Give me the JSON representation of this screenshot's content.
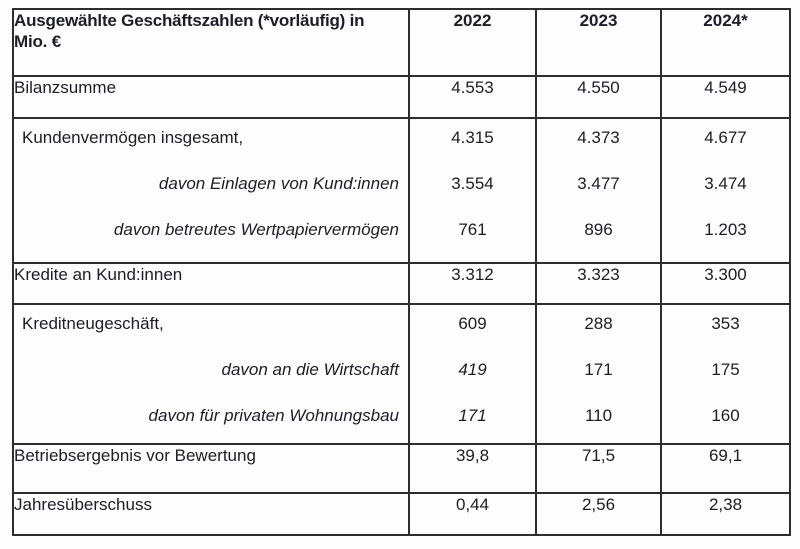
{
  "table": {
    "header": {
      "title_line1": "Ausgewählte Geschäftszahlen (*vorläufig) in",
      "title_line2": "Mio. €",
      "years": [
        "2022",
        "2023",
        "2024*"
      ]
    },
    "rows": {
      "bilanzsumme": {
        "label": "Bilanzsumme",
        "v2022": "4.553",
        "v2023": "4.550",
        "v2024": "4.549"
      },
      "kundenvermoegen": {
        "label": "Kundenvermögen insgesamt,",
        "v2022": "4.315",
        "v2023": "4.373",
        "v2024": "4.677"
      },
      "davon_einlagen": {
        "label": "davon Einlagen von Kund:innen",
        "v2022": "3.554",
        "v2023": "3.477",
        "v2024": "3.474"
      },
      "davon_wertpapier": {
        "label": "davon betreutes Wertpapiervermögen",
        "v2022": "761",
        "v2023": "896",
        "v2024": "1.203"
      },
      "kredite": {
        "label": "Kredite an Kund:innen",
        "v2022": "3.312",
        "v2023": "3.323",
        "v2024": "3.300"
      },
      "kreditneugeschaeft": {
        "label": "Kreditneugeschäft,",
        "v2022": "609",
        "v2023": "288",
        "v2024": "353"
      },
      "davon_wirtschaft": {
        "label": "davon an die Wirtschaft",
        "v2022": "419",
        "v2023": "171",
        "v2024": "175"
      },
      "davon_wohnungsbau": {
        "label": "davon für privaten Wohnungsbau",
        "v2022": "171",
        "v2023": "110",
        "v2024": "160"
      },
      "betriebsergebnis": {
        "label": "Betriebsergebnis vor Bewertung",
        "v2022": "39,8",
        "v2023": "71,5",
        "v2024": "69,1"
      },
      "jahresueberschuss": {
        "label": "Jahresüberschuss",
        "v2022": "0,44",
        "v2023": "2,56",
        "v2024": "2,38"
      }
    },
    "colors": {
      "text": "#1d1d27",
      "border": "#2d2d2d",
      "background": "#fdfdfd"
    }
  }
}
